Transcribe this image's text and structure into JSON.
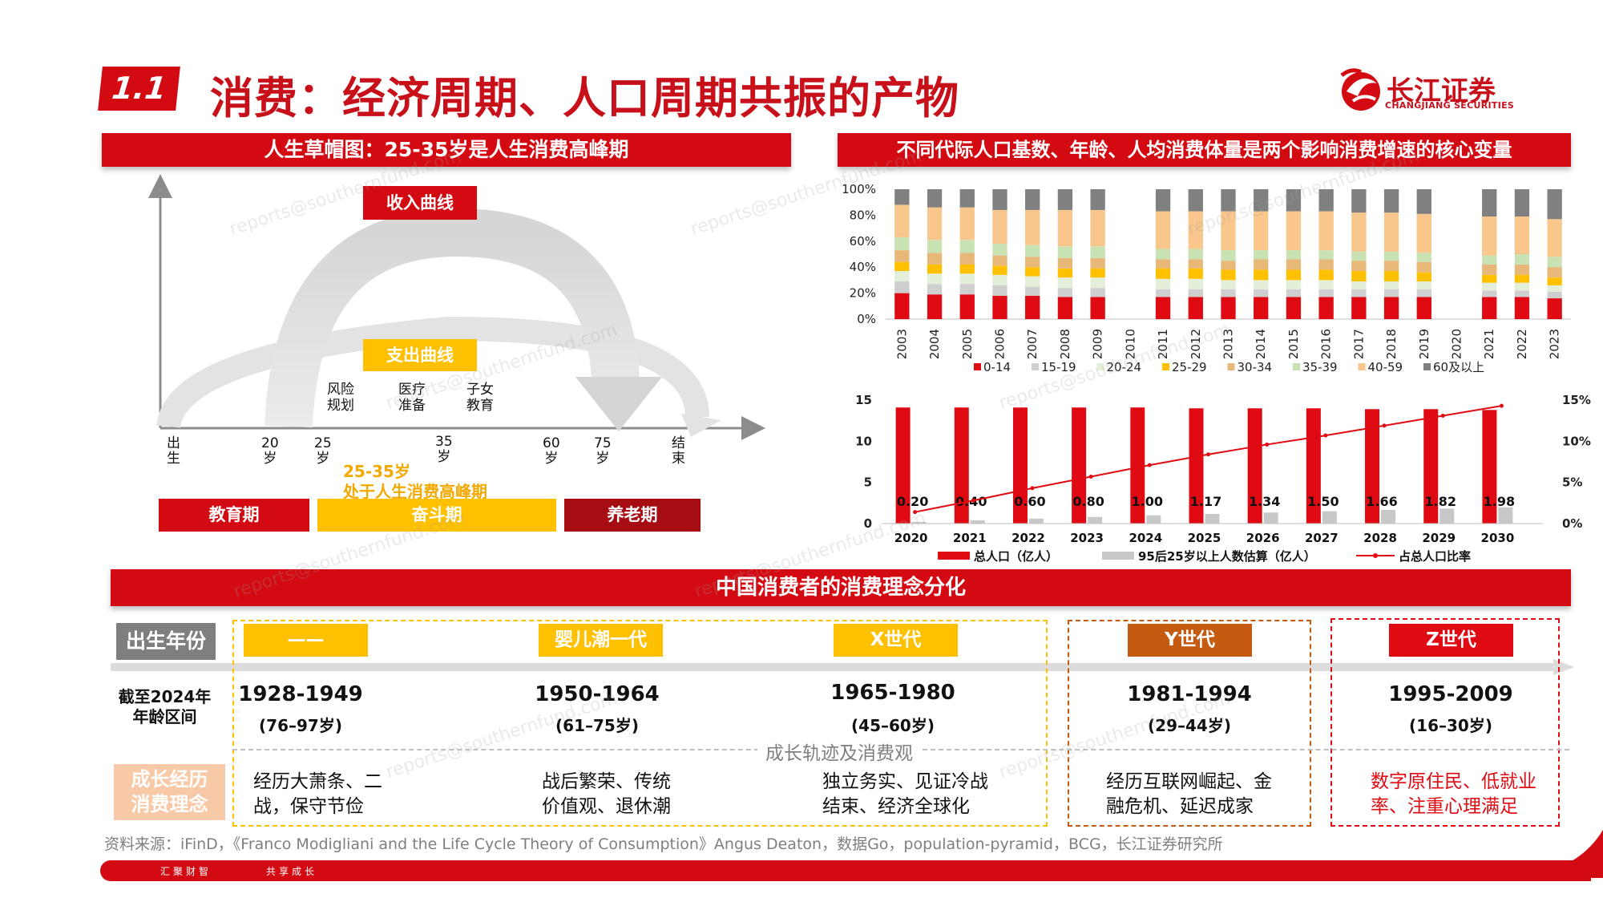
{
  "header": {
    "section_number": "1.1",
    "title": "消费：经济周期、人口周期共振的产物",
    "logo_cn": "长江证券",
    "logo_en": "CHANGJIANG SECURITIES"
  },
  "left_panel": {
    "banner": "人生草帽图：25-35岁是人生消费高峰期",
    "income_label": "收入曲线",
    "spend_label": "支出曲线",
    "needs": [
      {
        "line1": "风险",
        "line2": "规划"
      },
      {
        "line1": "医疗",
        "line2": "准备"
      },
      {
        "line1": "子女",
        "line2": "教育"
      }
    ],
    "age_ticks": [
      {
        "l1": "出",
        "l2": "生"
      },
      {
        "l1": "20",
        "l2": "岁"
      },
      {
        "l1": "25",
        "l2": "岁"
      },
      {
        "l1": "35",
        "l2": "岁"
      },
      {
        "l1": "60",
        "l2": "岁"
      },
      {
        "l1": "75",
        "l2": "岁"
      },
      {
        "l1": "结",
        "l2": "束"
      }
    ],
    "peak_line1": "25-35岁",
    "peak_line2": "处于人生消费高峰期",
    "phases": [
      "教育期",
      "奋斗期",
      "养老期"
    ]
  },
  "right_panel": {
    "banner": "不同代际人口基数、年龄、人均消费体量是两个影响消费增速的核心变量"
  },
  "chart_data": [
    {
      "type": "bar",
      "stacked": true,
      "categories": [
        "2003",
        "2004",
        "2005",
        "2006",
        "2007",
        "2008",
        "2009",
        "2010",
        "2011",
        "2012",
        "2013",
        "2014",
        "2015",
        "2016",
        "2017",
        "2018",
        "2019",
        "2020",
        "2021",
        "2022",
        "2023"
      ],
      "y_ticks": [
        "100%",
        "80%",
        "60%",
        "40%",
        "20%",
        "0%"
      ],
      "ylim": [
        0,
        100
      ],
      "legend_position": "bottom",
      "series": [
        {
          "name": "0-14",
          "color": "#e00a12",
          "values": [
            20,
            19,
            19,
            18,
            18,
            17,
            17,
            null,
            17,
            17,
            17,
            17,
            17,
            17,
            17,
            17,
            17,
            null,
            17,
            17,
            16
          ]
        },
        {
          "name": "15-19",
          "color": "#cfcfcf",
          "values": [
            9,
            8,
            8,
            8,
            7,
            7,
            7,
            null,
            6,
            6,
            6,
            6,
            6,
            6,
            6,
            6,
            6,
            null,
            5,
            5,
            5
          ]
        },
        {
          "name": "20-24",
          "color": "#e4efd9",
          "values": [
            8,
            8,
            8,
            8,
            8,
            8,
            8,
            null,
            8,
            8,
            7,
            7,
            7,
            7,
            6,
            6,
            6,
            null,
            6,
            6,
            5
          ]
        },
        {
          "name": "25-29",
          "color": "#ffc000",
          "values": [
            7,
            7,
            7,
            7,
            7,
            7,
            7,
            null,
            8,
            8,
            8,
            8,
            8,
            8,
            8,
            8,
            7,
            null,
            6,
            6,
            6
          ]
        },
        {
          "name": "30-34",
          "color": "#e8b879",
          "values": [
            9,
            9,
            9,
            8,
            8,
            8,
            8,
            null,
            7,
            7,
            7,
            8,
            8,
            8,
            8,
            8,
            8,
            null,
            8,
            8,
            8
          ]
        },
        {
          "name": "35-39",
          "color": "#c9e2b3",
          "values": [
            10,
            10,
            10,
            9,
            9,
            9,
            9,
            null,
            8,
            8,
            8,
            7,
            7,
            7,
            7,
            7,
            7,
            null,
            7,
            8,
            8
          ]
        },
        {
          "name": "40-59",
          "color": "#f9c78b",
          "values": [
            25,
            25,
            25,
            26,
            27,
            28,
            28,
            null,
            29,
            29,
            30,
            30,
            30,
            30,
            30,
            30,
            30,
            null,
            30,
            29,
            29
          ]
        },
        {
          "name": "60及以上",
          "color": "#808080",
          "values": [
            12,
            14,
            14,
            16,
            16,
            16,
            16,
            null,
            17,
            17,
            17,
            17,
            17,
            17,
            18,
            18,
            19,
            null,
            21,
            21,
            23
          ]
        }
      ]
    },
    {
      "type": "bar",
      "categories": [
        "2020",
        "2021",
        "2022",
        "2023",
        "2024",
        "2025",
        "2026",
        "2027",
        "2028",
        "2029",
        "2030"
      ],
      "y_ticks": [
        "15",
        "10",
        "5",
        "0"
      ],
      "y2_ticks": [
        "15%",
        "10%",
        "5%",
        "0%"
      ],
      "ylim": [
        0,
        15
      ],
      "y2lim": [
        0,
        15
      ],
      "legend_position": "bottom",
      "series": [
        {
          "name": "总人口（亿人）",
          "color": "#e00a12",
          "values": [
            14.1,
            14.1,
            14.1,
            14.1,
            14.1,
            14.0,
            14.0,
            14.0,
            13.9,
            13.9,
            13.8
          ]
        },
        {
          "name": "95后25岁以上人数估算（亿人）",
          "color": "#c8c8c8",
          "values": [
            0.2,
            0.4,
            0.6,
            0.8,
            1.0,
            1.17,
            1.34,
            1.5,
            1.66,
            1.82,
            1.98
          ]
        },
        {
          "name": "占总人口比率",
          "color": "#e00a12",
          "type": "line",
          "values": [
            1.4,
            2.8,
            4.3,
            5.7,
            7.1,
            8.4,
            9.6,
            10.7,
            11.9,
            13.1,
            14.3
          ]
        }
      ],
      "data_labels": [
        "0.20",
        "0.40",
        "0.60",
        "0.80",
        "1.00",
        "1.17",
        "1.34",
        "1.50",
        "1.66",
        "1.82",
        "1.98"
      ]
    }
  ],
  "bottom": {
    "banner": "中国消费者的消费理念分化",
    "row_birth": "出生年份",
    "row_age_l1": "截至2024年",
    "row_age_l2": "年龄区间",
    "midline": "成长轨迹及消费观",
    "row_growth_l1": "成长经历",
    "row_growth_l2": "消费理念",
    "generations": [
      {
        "tag": "——",
        "years": "1928-1949",
        "ages": "(76–97岁)",
        "d1": "经历大萧条、二",
        "d2": "战，保守节俭"
      },
      {
        "tag": "婴儿潮一代",
        "years": "1950-1964",
        "ages": "(61–75岁)",
        "d1": "战后繁荣、传统",
        "d2": "价值观、退休潮"
      },
      {
        "tag": "X世代",
        "years": "1965-1980",
        "ages": "(45–60岁)",
        "d1": "独立务实、见证冷战",
        "d2": "结束、经济全球化"
      },
      {
        "tag": "Y世代",
        "years": "1981-1994",
        "ages": "(29–44岁)",
        "d1": "经历互联网崛起、金",
        "d2": "融危机、延迟成家"
      },
      {
        "tag": "Z世代",
        "years": "1995-2009",
        "ages": "(16–30岁)",
        "d1": "数字原住民、低就业",
        "d2": "率、注重心理满足"
      }
    ]
  },
  "source": "资料来源：iFinD，《Franco Modigliani and the Life Cycle Theory of Consumption》Angus Deaton，数据Go，population-pyramid，BCG，长江证券研究所",
  "footer": {
    "left": "汇聚财智",
    "right": "共享成长"
  },
  "watermark": "reports@southernfund.com"
}
